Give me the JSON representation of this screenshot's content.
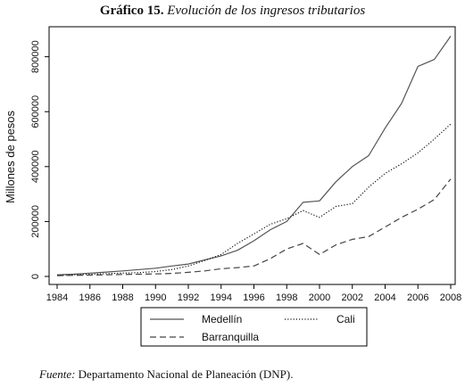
{
  "figure": {
    "title_number": "Gráfico 15.",
    "title_text": "Evolución de los ingresos tributarios",
    "source_label": "Fuente:",
    "source_text": "Departamento Nacional de Planeación (DNP)."
  },
  "chart_data": {
    "type": "line",
    "title": "Gráfico 15. Evolución de los ingresos tributarios",
    "xlabel": "",
    "ylabel": "Millones de pesos",
    "xlim": [
      1984,
      2008
    ],
    "ylim": [
      0,
      880000
    ],
    "x_ticks": [
      1984,
      1986,
      1988,
      1990,
      1992,
      1994,
      1996,
      1998,
      2000,
      2002,
      2004,
      2006,
      2008
    ],
    "y_ticks": [
      0,
      200000,
      400000,
      600000,
      800000
    ],
    "grid": false,
    "legend_position": "bottom",
    "x": [
      1984,
      1985,
      1986,
      1987,
      1988,
      1989,
      1990,
      1991,
      1992,
      1993,
      1994,
      1995,
      1996,
      1997,
      1998,
      1999,
      2000,
      2001,
      2002,
      2003,
      2004,
      2005,
      2006,
      2007,
      2008
    ],
    "series": [
      {
        "name": "Medellín",
        "style": "solid",
        "color": "#555555",
        "values": [
          6000,
          8000,
          12000,
          16000,
          20000,
          25000,
          30000,
          38000,
          45000,
          60000,
          75000,
          95000,
          130000,
          170000,
          200000,
          270000,
          275000,
          345000,
          400000,
          440000,
          540000,
          630000,
          765000,
          790000,
          875000
        ]
      },
      {
        "name": "Cali",
        "style": "dotted",
        "color": "#111111",
        "values": [
          5000,
          6000,
          8000,
          10000,
          12000,
          14000,
          18000,
          25000,
          38000,
          58000,
          80000,
          120000,
          155000,
          190000,
          210000,
          240000,
          215000,
          255000,
          265000,
          325000,
          375000,
          410000,
          450000,
          500000,
          555000
        ]
      },
      {
        "name": "Barranquilla",
        "style": "dashed",
        "color": "#444444",
        "values": [
          3000,
          4000,
          5000,
          6000,
          7000,
          8000,
          9000,
          11000,
          15000,
          20000,
          28000,
          32000,
          38000,
          65000,
          100000,
          120000,
          80000,
          115000,
          135000,
          145000,
          180000,
          215000,
          245000,
          280000,
          355000
        ]
      }
    ]
  }
}
